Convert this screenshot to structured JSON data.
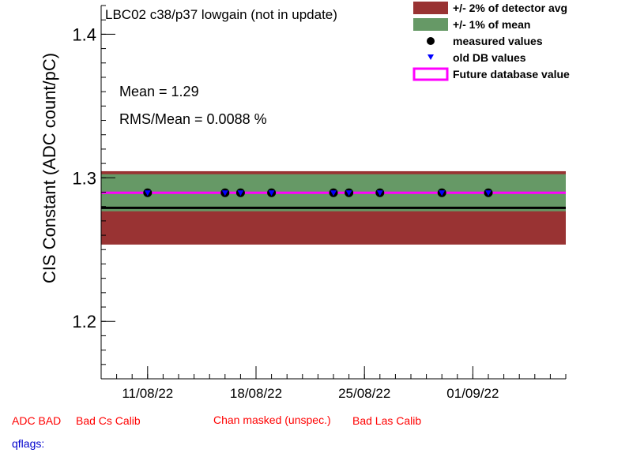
{
  "chart_data": {
    "type": "scatter",
    "title": "LBC02 c38/p37 lowgain (not in update)",
    "ylabel": "CIS Constant (ADC count/pC)",
    "xlabel": "",
    "ylim": [
      1.16,
      1.42
    ],
    "xlim": [
      "2022-08-08",
      "2022-09-07"
    ],
    "y_ticks": [
      1.2,
      1.3,
      1.4
    ],
    "x_ticks": [
      "11/08/22",
      "18/08/22",
      "25/08/22",
      "01/09/22"
    ],
    "x_tick_dates": [
      "2022-08-11",
      "2022-08-18",
      "2022-08-25",
      "2022-09-01"
    ],
    "grid": false,
    "legend_placement": "top-right",
    "bands": {
      "detector_avg_2pct": [
        1.2535,
        1.3046
      ],
      "mean_1pct": [
        1.2767,
        1.3025
      ],
      "detector_avg_line": 1.2791,
      "future_db_value": 1.2896
    },
    "series": [
      {
        "name": "measured values",
        "x": [
          "2022-08-11",
          "2022-08-16",
          "2022-08-17",
          "2022-08-19",
          "2022-08-23",
          "2022-08-24",
          "2022-08-26",
          "2022-08-30",
          "2022-09-02"
        ],
        "y": [
          1.2896,
          1.2896,
          1.2896,
          1.2896,
          1.2896,
          1.2896,
          1.2896,
          1.2896,
          1.2896
        ]
      },
      {
        "name": "old DB values",
        "x": [
          "2022-08-11",
          "2022-08-16",
          "2022-08-17",
          "2022-08-19",
          "2022-08-23",
          "2022-08-24",
          "2022-08-26",
          "2022-08-30",
          "2022-09-02"
        ],
        "y": [
          1.2896,
          1.2896,
          1.2896,
          1.2896,
          1.2896,
          1.2896,
          1.2896,
          1.2896,
          1.2896
        ]
      }
    ],
    "legend": [
      {
        "label": "+/- 2% of detector avg",
        "color": "#993333"
      },
      {
        "label": "+/- 1% of mean",
        "color": "#669966"
      },
      {
        "label": "measured values",
        "color": "#000000"
      },
      {
        "label": "old DB values",
        "color": "#0000ff"
      },
      {
        "label": "Future database value",
        "color": "#ff00ff"
      }
    ],
    "annotations": {
      "mean": "Mean = 1.29",
      "rms": "RMS/Mean = 0.0088 %"
    }
  },
  "flags": {
    "adc_bad": "ADC BAD",
    "bad_cs": "Bad Cs Calib",
    "chan_masked": "Chan masked (unspec.)",
    "bad_las": "Bad Las Calib",
    "qflags": "qflags:"
  },
  "colors": {
    "detector_band": "#993333",
    "mean_band": "#669966",
    "future_line": "#ff00ff",
    "old_db_marker": "#0000ff",
    "flag_red": "#ff0000",
    "flag_blue": "#0000cc"
  }
}
